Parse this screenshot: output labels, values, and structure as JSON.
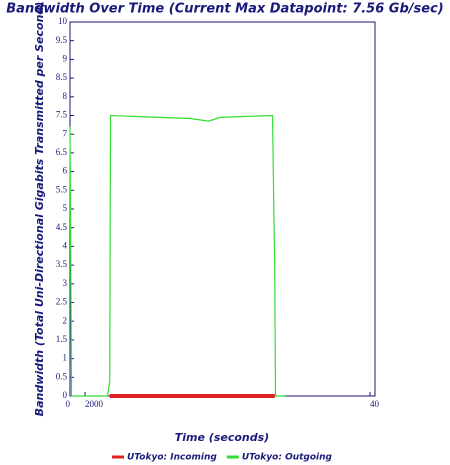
{
  "chart_data": {
    "type": "line",
    "title": "Bandwidth Over Time (Current Max Datapoint: 7.56 Gb/sec)",
    "x_label": "Time (seconds)",
    "y_label": "Bandwidth (Total Uni-Directional Gigabits Transmitted per Second)",
    "xlim": [
      0,
      40000
    ],
    "xticks": [
      0,
      2000,
      {
        "value": 40000,
        "label": "40"
      }
    ],
    "ylim": [
      0,
      10
    ],
    "yticks": [
      0,
      0.5,
      1,
      1.5,
      2,
      2.5,
      3,
      3.5,
      4,
      4.5,
      5,
      5.5,
      6,
      6.5,
      7,
      7.5,
      8,
      8.5,
      9,
      9.5,
      10
    ],
    "series": [
      {
        "name": "UTokyo: Incoming",
        "color": "#e02020",
        "width": 4,
        "x": [
          5300,
          27300
        ],
        "values": [
          0,
          0
        ]
      },
      {
        "name": "UTokyo: Outgoing",
        "color": "#33dd33",
        "width": 1.2,
        "x": [
          0,
          200,
          5000,
          5300,
          5400,
          8000,
          12000,
          16000,
          18500,
          20000,
          24000,
          27000,
          27300,
          27400,
          28700
        ],
        "values": [
          7.2,
          0,
          0,
          0.4,
          7.5,
          7.48,
          7.45,
          7.42,
          7.35,
          7.45,
          7.48,
          7.5,
          3.3,
          0,
          0
        ]
      }
    ]
  }
}
